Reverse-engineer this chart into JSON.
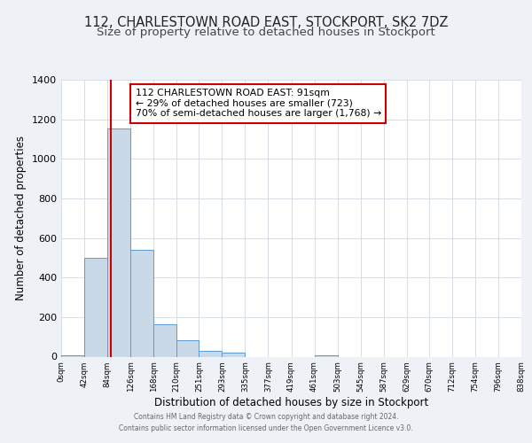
{
  "title": "112, CHARLESTOWN ROAD EAST, STOCKPORT, SK2 7DZ",
  "subtitle": "Size of property relative to detached houses in Stockport",
  "xlabel": "Distribution of detached houses by size in Stockport",
  "ylabel": "Number of detached properties",
  "bar_edges": [
    0,
    42,
    84,
    126,
    168,
    210,
    251,
    293,
    335,
    377,
    419,
    461,
    503,
    545,
    587,
    629,
    670,
    712,
    754,
    796,
    838
  ],
  "bar_heights": [
    5,
    500,
    1155,
    540,
    165,
    85,
    28,
    20,
    0,
    0,
    0,
    5,
    0,
    0,
    0,
    0,
    0,
    0,
    0,
    0
  ],
  "tick_labels": [
    "0sqm",
    "42sqm",
    "84sqm",
    "126sqm",
    "168sqm",
    "210sqm",
    "251sqm",
    "293sqm",
    "335sqm",
    "377sqm",
    "419sqm",
    "461sqm",
    "503sqm",
    "545sqm",
    "587sqm",
    "629sqm",
    "670sqm",
    "712sqm",
    "754sqm",
    "796sqm",
    "838sqm"
  ],
  "bar_color": "#c9d9e8",
  "bar_edge_color": "#5b9bd5",
  "red_line_x": 91,
  "annotation_title": "112 CHARLESTOWN ROAD EAST: 91sqm",
  "annotation_line1": "← 29% of detached houses are smaller (723)",
  "annotation_line2": "70% of semi-detached houses are larger (1,768) →",
  "annotation_box_color": "#ffffff",
  "annotation_border_color": "#cc0000",
  "red_line_color": "#cc0000",
  "ylim": [
    0,
    1400
  ],
  "yticks": [
    0,
    200,
    400,
    600,
    800,
    1000,
    1200,
    1400
  ],
  "background_color": "#eef2f7",
  "plot_background_color": "#ffffff",
  "footer_line1": "Contains HM Land Registry data © Crown copyright and database right 2024.",
  "footer_line2": "Contains public sector information licensed under the Open Government Licence v3.0.",
  "title_fontsize": 10.5,
  "subtitle_fontsize": 9.5,
  "grid_color": "#d0d8e0"
}
